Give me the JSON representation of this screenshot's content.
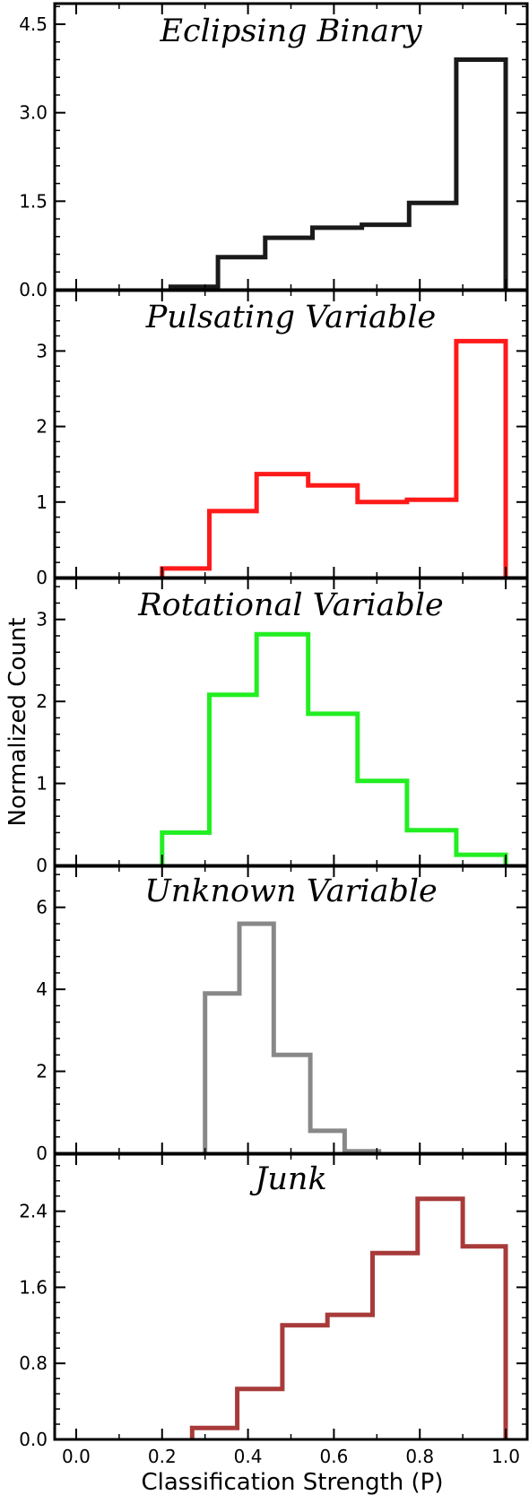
{
  "figure": {
    "xlabel": "Classification Strength (P)",
    "ylabel": "Normalized Count"
  },
  "chart_data": [
    {
      "type": "histogram",
      "title": "Eclipsing Binary",
      "color": "#1a1a1a",
      "xlim": [
        -0.05,
        1.05
      ],
      "ylim": [
        0,
        4.85
      ],
      "yticks": [
        0.0,
        1.5,
        3.0,
        4.5
      ],
      "ytick_labels": [
        "0.0",
        "1.5",
        "3.0",
        "4.5"
      ],
      "bin_edges": [
        0.22,
        0.33,
        0.44,
        0.55,
        0.665,
        0.775,
        0.885,
        1.0
      ],
      "values": [
        0.05,
        0.55,
        0.88,
        1.05,
        1.1,
        1.47,
        3.9
      ]
    },
    {
      "type": "histogram",
      "title": "Pulsating Variable",
      "color": "#ff1a1a",
      "xlim": [
        -0.05,
        1.05
      ],
      "ylim": [
        0,
        3.8
      ],
      "yticks": [
        0,
        1,
        2,
        3
      ],
      "ytick_labels": [
        "0",
        "1",
        "2",
        "3"
      ],
      "bin_edges": [
        0.2,
        0.31,
        0.42,
        0.54,
        0.655,
        0.77,
        0.885,
        1.0
      ],
      "values": [
        0.12,
        0.88,
        1.37,
        1.22,
        1.0,
        1.03,
        3.13
      ]
    },
    {
      "type": "histogram",
      "title": "Rotational Variable",
      "color": "#22ee22",
      "xlim": [
        -0.05,
        1.05
      ],
      "ylim": [
        0,
        3.5
      ],
      "yticks": [
        0,
        1,
        2,
        3
      ],
      "ytick_labels": [
        "0",
        "1",
        "2",
        "3"
      ],
      "bin_edges": [
        0.2,
        0.31,
        0.42,
        0.54,
        0.655,
        0.77,
        0.885,
        1.0
      ],
      "values": [
        0.4,
        2.08,
        2.82,
        1.85,
        1.03,
        0.43,
        0.13
      ]
    },
    {
      "type": "histogram",
      "title": "Unknown Variable",
      "color": "#888888",
      "xlim": [
        -0.05,
        1.05
      ],
      "ylim": [
        0,
        7.0
      ],
      "yticks": [
        0,
        2,
        4,
        6
      ],
      "ytick_labels": [
        "0",
        "2",
        "4",
        "6"
      ],
      "bin_edges": [
        0.3,
        0.38,
        0.46,
        0.545,
        0.625,
        0.705
      ],
      "values": [
        3.9,
        5.6,
        2.4,
        0.55,
        0.05
      ]
    },
    {
      "type": "histogram",
      "title": "Junk",
      "color": "#a83a3a",
      "xlim": [
        -0.05,
        1.05
      ],
      "ylim": [
        0,
        3.0
      ],
      "yticks": [
        0.0,
        0.8,
        1.6,
        2.4
      ],
      "ytick_labels": [
        "0.0",
        "0.8",
        "1.6",
        "2.4"
      ],
      "xticks": [
        0.0,
        0.2,
        0.4,
        0.6,
        0.8,
        1.0
      ],
      "xtick_labels": [
        "0.0",
        "0.2",
        "0.4",
        "0.6",
        "0.8",
        "1.0"
      ],
      "bin_edges": [
        0.27,
        0.375,
        0.48,
        0.585,
        0.69,
        0.795,
        0.9,
        1.0
      ],
      "values": [
        0.12,
        0.53,
        1.2,
        1.31,
        1.96,
        2.53,
        2.03
      ]
    }
  ]
}
